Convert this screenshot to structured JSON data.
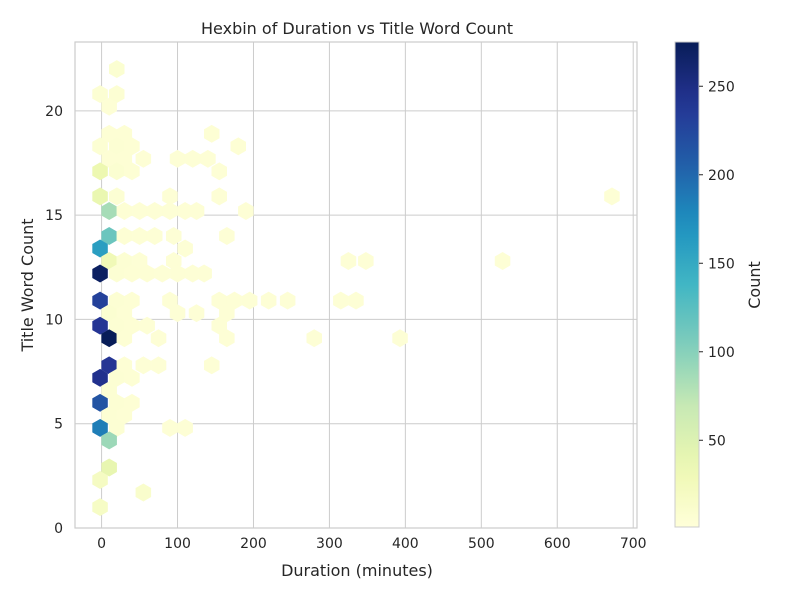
{
  "chart_data": {
    "type": "hexbin",
    "title": "Hexbin of Duration vs Title Word Count",
    "xlabel": "Duration (minutes)",
    "ylabel": "Title Word Count",
    "xlim": [
      -35,
      705
    ],
    "ylim": [
      0,
      23.3
    ],
    "xticks": [
      0,
      100,
      200,
      300,
      400,
      500,
      600,
      700
    ],
    "yticks": [
      0,
      5,
      10,
      15,
      20
    ],
    "grid": true,
    "colormap": "YlGnBu",
    "colorbar": {
      "label": "Count",
      "range": [
        1,
        275
      ],
      "ticks": [
        50,
        100,
        150,
        200,
        250
      ]
    },
    "bins": [
      {
        "x": 20,
        "y": 22.0,
        "count": 8
      },
      {
        "x": -2,
        "y": 20.8,
        "count": 6
      },
      {
        "x": 20,
        "y": 20.8,
        "count": 6
      },
      {
        "x": 10,
        "y": 20.2,
        "count": 4
      },
      {
        "x": 10,
        "y": 18.9,
        "count": 5
      },
      {
        "x": 30,
        "y": 18.9,
        "count": 5
      },
      {
        "x": 145,
        "y": 18.9,
        "count": 5
      },
      {
        "x": -2,
        "y": 18.3,
        "count": 6
      },
      {
        "x": 20,
        "y": 18.3,
        "count": 6
      },
      {
        "x": 40,
        "y": 18.3,
        "count": 5
      },
      {
        "x": 180,
        "y": 18.3,
        "count": 5
      },
      {
        "x": 10,
        "y": 17.7,
        "count": 5
      },
      {
        "x": 30,
        "y": 17.7,
        "count": 5
      },
      {
        "x": 55,
        "y": 17.7,
        "count": 4
      },
      {
        "x": 100,
        "y": 17.7,
        "count": 4
      },
      {
        "x": 120,
        "y": 17.7,
        "count": 4
      },
      {
        "x": 140,
        "y": 17.7,
        "count": 4
      },
      {
        "x": -2,
        "y": 17.1,
        "count": 35
      },
      {
        "x": 20,
        "y": 17.1,
        "count": 8
      },
      {
        "x": 40,
        "y": 17.1,
        "count": 5
      },
      {
        "x": 155,
        "y": 17.1,
        "count": 4
      },
      {
        "x": -2,
        "y": 15.9,
        "count": 38
      },
      {
        "x": 20,
        "y": 15.9,
        "count": 6
      },
      {
        "x": 90,
        "y": 15.9,
        "count": 4
      },
      {
        "x": 155,
        "y": 15.9,
        "count": 4
      },
      {
        "x": 672,
        "y": 15.9,
        "count": 4
      },
      {
        "x": 10,
        "y": 15.2,
        "count": 85
      },
      {
        "x": 30,
        "y": 15.2,
        "count": 5
      },
      {
        "x": 50,
        "y": 15.2,
        "count": 4
      },
      {
        "x": 70,
        "y": 15.2,
        "count": 4
      },
      {
        "x": 90,
        "y": 15.2,
        "count": 4
      },
      {
        "x": 110,
        "y": 15.2,
        "count": 4
      },
      {
        "x": 125,
        "y": 15.2,
        "count": 4
      },
      {
        "x": 190,
        "y": 15.2,
        "count": 4
      },
      {
        "x": 10,
        "y": 14.0,
        "count": 115
      },
      {
        "x": 30,
        "y": 14.0,
        "count": 5
      },
      {
        "x": 50,
        "y": 14.0,
        "count": 4
      },
      {
        "x": 70,
        "y": 14.0,
        "count": 4
      },
      {
        "x": 95,
        "y": 14.0,
        "count": 4
      },
      {
        "x": 165,
        "y": 14.0,
        "count": 4
      },
      {
        "x": -2,
        "y": 13.4,
        "count": 160
      },
      {
        "x": 110,
        "y": 13.4,
        "count": 4
      },
      {
        "x": 10,
        "y": 12.8,
        "count": 30
      },
      {
        "x": 30,
        "y": 12.8,
        "count": 6
      },
      {
        "x": 50,
        "y": 12.8,
        "count": 4
      },
      {
        "x": 95,
        "y": 12.8,
        "count": 4
      },
      {
        "x": 325,
        "y": 12.8,
        "count": 4
      },
      {
        "x": 348,
        "y": 12.8,
        "count": 4
      },
      {
        "x": 528,
        "y": 12.8,
        "count": 4
      },
      {
        "x": -2,
        "y": 12.2,
        "count": 270
      },
      {
        "x": 20,
        "y": 12.2,
        "count": 6
      },
      {
        "x": 40,
        "y": 12.2,
        "count": 5
      },
      {
        "x": 60,
        "y": 12.2,
        "count": 5
      },
      {
        "x": 80,
        "y": 12.2,
        "count": 4
      },
      {
        "x": 100,
        "y": 12.2,
        "count": 4
      },
      {
        "x": 120,
        "y": 12.2,
        "count": 4
      },
      {
        "x": 135,
        "y": 12.2,
        "count": 4
      },
      {
        "x": -2,
        "y": 10.9,
        "count": 230
      },
      {
        "x": 20,
        "y": 10.9,
        "count": 6
      },
      {
        "x": 40,
        "y": 10.9,
        "count": 5
      },
      {
        "x": 90,
        "y": 10.9,
        "count": 4
      },
      {
        "x": 155,
        "y": 10.9,
        "count": 4
      },
      {
        "x": 175,
        "y": 10.9,
        "count": 4
      },
      {
        "x": 195,
        "y": 10.9,
        "count": 4
      },
      {
        "x": 220,
        "y": 10.9,
        "count": 4
      },
      {
        "x": 245,
        "y": 10.9,
        "count": 4
      },
      {
        "x": 315,
        "y": 10.9,
        "count": 4
      },
      {
        "x": 335,
        "y": 10.9,
        "count": 4
      },
      {
        "x": 10,
        "y": 10.3,
        "count": 8
      },
      {
        "x": 30,
        "y": 10.3,
        "count": 5
      },
      {
        "x": 100,
        "y": 10.3,
        "count": 4
      },
      {
        "x": 125,
        "y": 10.3,
        "count": 4
      },
      {
        "x": 165,
        "y": 10.3,
        "count": 4
      },
      {
        "x": -2,
        "y": 9.7,
        "count": 240
      },
      {
        "x": 20,
        "y": 9.7,
        "count": 6
      },
      {
        "x": 40,
        "y": 9.7,
        "count": 5
      },
      {
        "x": 60,
        "y": 9.7,
        "count": 4
      },
      {
        "x": 155,
        "y": 9.7,
        "count": 4
      },
      {
        "x": 10,
        "y": 9.1,
        "count": 275
      },
      {
        "x": 30,
        "y": 9.1,
        "count": 5
      },
      {
        "x": 75,
        "y": 9.1,
        "count": 4
      },
      {
        "x": 165,
        "y": 9.1,
        "count": 4
      },
      {
        "x": 280,
        "y": 9.1,
        "count": 4
      },
      {
        "x": 393,
        "y": 9.1,
        "count": 4
      },
      {
        "x": 10,
        "y": 7.8,
        "count": 240
      },
      {
        "x": 30,
        "y": 7.8,
        "count": 5
      },
      {
        "x": 55,
        "y": 7.8,
        "count": 4
      },
      {
        "x": 75,
        "y": 7.8,
        "count": 4
      },
      {
        "x": 145,
        "y": 7.8,
        "count": 4
      },
      {
        "x": -2,
        "y": 7.2,
        "count": 245
      },
      {
        "x": 20,
        "y": 7.2,
        "count": 6
      },
      {
        "x": 40,
        "y": 7.2,
        "count": 5
      },
      {
        "x": 10,
        "y": 6.6,
        "count": 6
      },
      {
        "x": -2,
        "y": 6.0,
        "count": 215
      },
      {
        "x": 20,
        "y": 6.0,
        "count": 6
      },
      {
        "x": 40,
        "y": 6.0,
        "count": 5
      },
      {
        "x": 10,
        "y": 5.4,
        "count": 6
      },
      {
        "x": 30,
        "y": 5.4,
        "count": 5
      },
      {
        "x": -2,
        "y": 4.8,
        "count": 185
      },
      {
        "x": 20,
        "y": 4.8,
        "count": 6
      },
      {
        "x": 90,
        "y": 4.8,
        "count": 4
      },
      {
        "x": 110,
        "y": 4.8,
        "count": 4
      },
      {
        "x": 10,
        "y": 4.2,
        "count": 90
      },
      {
        "x": 10,
        "y": 2.9,
        "count": 40
      },
      {
        "x": -2,
        "y": 2.3,
        "count": 20
      },
      {
        "x": 55,
        "y": 1.7,
        "count": 12
      },
      {
        "x": -2,
        "y": 1.0,
        "count": 18
      }
    ]
  }
}
